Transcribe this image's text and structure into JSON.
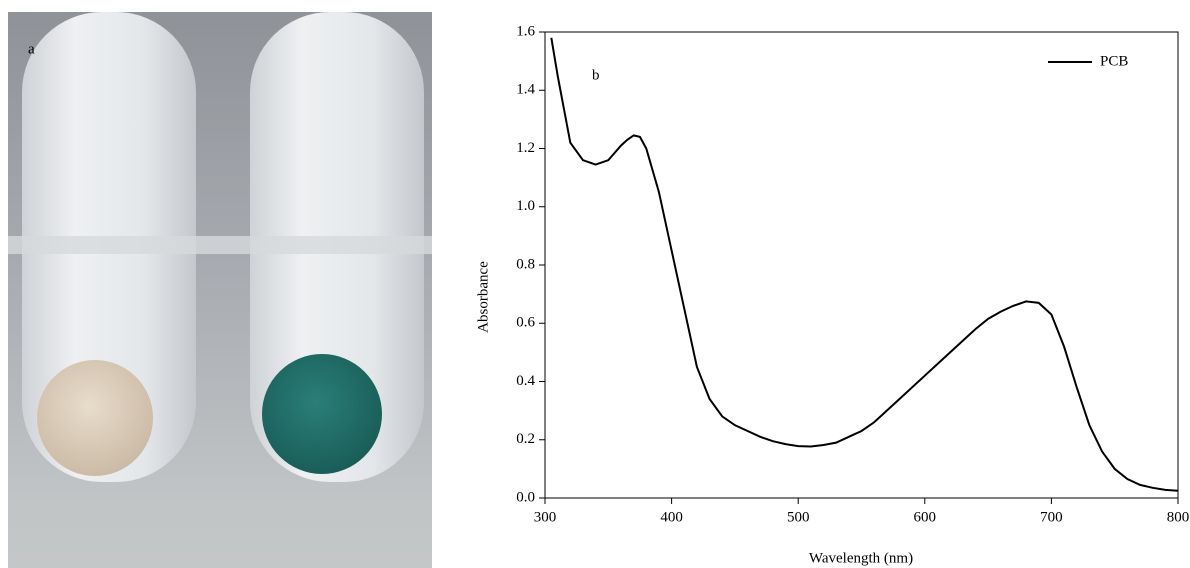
{
  "photo": {
    "label": "a"
  },
  "chart_data": {
    "type": "line",
    "panel_label": "b",
    "x_label": "Wavelength (nm)",
    "y_label": "Absorbance",
    "xlim": [
      300,
      800
    ],
    "ylim": [
      0,
      1.6
    ],
    "xticks": [
      300,
      400,
      500,
      600,
      700,
      800
    ],
    "yticks": [
      {
        "value": 0,
        "label": "0.0"
      },
      {
        "value": 0.2,
        "label": "0.2"
      },
      {
        "value": 0.4,
        "label": "0.4"
      },
      {
        "value": 0.6,
        "label": "0.6"
      },
      {
        "value": 0.8,
        "label": "0.8"
      },
      {
        "value": 1.0,
        "label": "1.0"
      },
      {
        "value": 1.2,
        "label": "1.2"
      },
      {
        "value": 1.4,
        "label": "1.4"
      },
      {
        "value": 1.6,
        "label": "1.6"
      }
    ],
    "legend": "upper right",
    "x": [
      305,
      310,
      320,
      330,
      340,
      350,
      360,
      365,
      370,
      375,
      380,
      390,
      400,
      410,
      420,
      430,
      440,
      450,
      460,
      470,
      480,
      490,
      500,
      510,
      520,
      530,
      540,
      550,
      560,
      570,
      580,
      590,
      600,
      610,
      620,
      630,
      640,
      650,
      660,
      670,
      680,
      690,
      700,
      710,
      720,
      730,
      740,
      750,
      760,
      770,
      780,
      790,
      800
    ],
    "series": [
      {
        "name": "PCB",
        "color": "#000000",
        "values": [
          1.58,
          1.45,
          1.22,
          1.16,
          1.145,
          1.16,
          1.21,
          1.23,
          1.245,
          1.24,
          1.2,
          1.05,
          0.85,
          0.65,
          0.45,
          0.34,
          0.28,
          0.25,
          0.23,
          0.21,
          0.195,
          0.185,
          0.178,
          0.177,
          0.182,
          0.19,
          0.21,
          0.23,
          0.26,
          0.3,
          0.34,
          0.38,
          0.42,
          0.46,
          0.5,
          0.54,
          0.58,
          0.615,
          0.64,
          0.66,
          0.675,
          0.67,
          0.63,
          0.52,
          0.38,
          0.25,
          0.16,
          0.1,
          0.065,
          0.045,
          0.035,
          0.028,
          0.025
        ]
      }
    ]
  }
}
